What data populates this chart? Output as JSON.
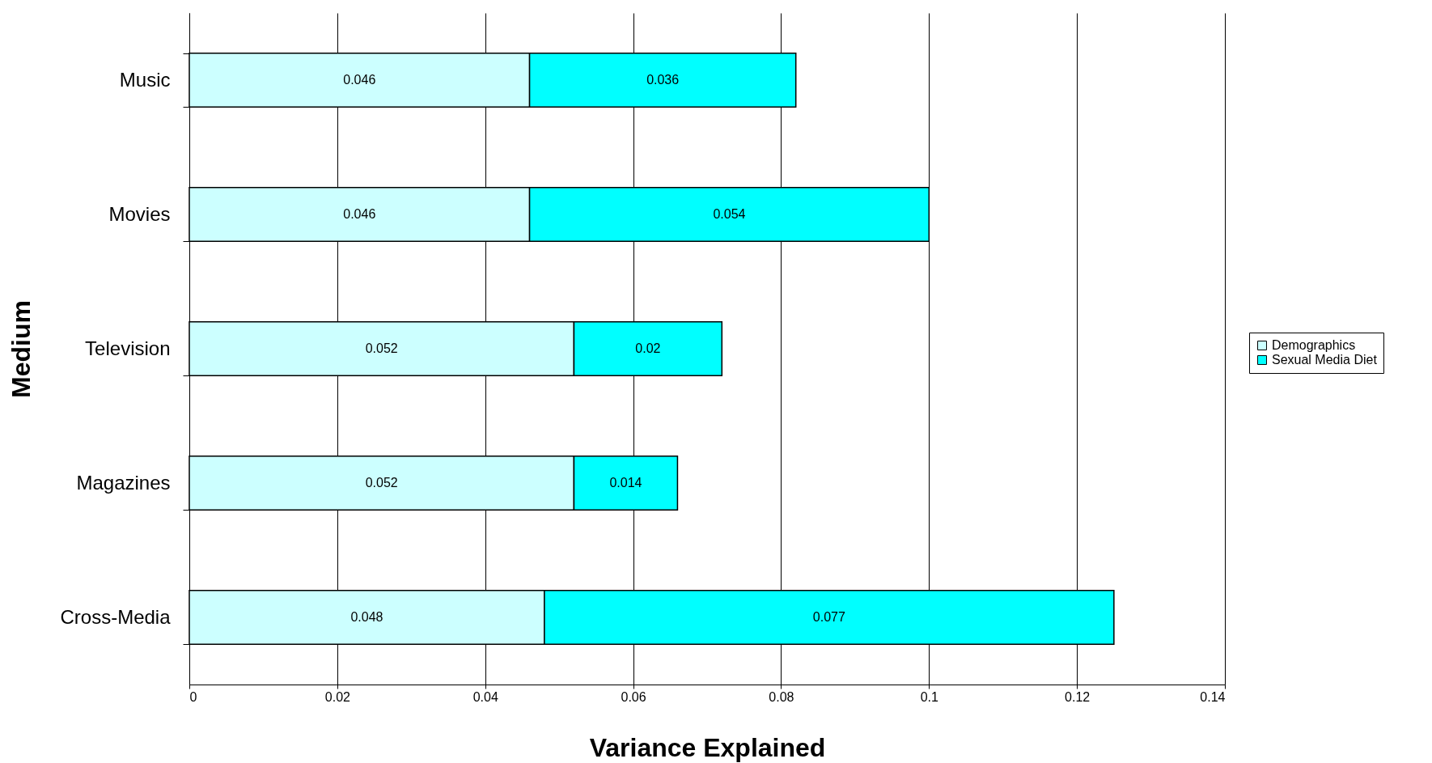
{
  "chart_data": {
    "type": "bar",
    "orientation": "horizontal",
    "stacked": true,
    "xlabel": "Variance Explained",
    "ylabel": "Medium",
    "categories": [
      "Music",
      "Movies",
      "Television",
      "Magazines",
      "Cross-Media"
    ],
    "series": [
      {
        "name": "Demographics",
        "color": "#ccffff",
        "values": [
          0.046,
          0.046,
          0.052,
          0.052,
          0.048
        ]
      },
      {
        "name": "Sexual Media Diet",
        "color": "#00ffff",
        "values": [
          0.036,
          0.054,
          0.02,
          0.014,
          0.077
        ]
      }
    ],
    "xlim": [
      0,
      0.14
    ],
    "xticks": [
      0,
      0.02,
      0.04,
      0.06,
      0.08,
      0.1,
      0.12,
      0.14
    ],
    "grid": "x",
    "legend": "right",
    "data_labels": true
  }
}
